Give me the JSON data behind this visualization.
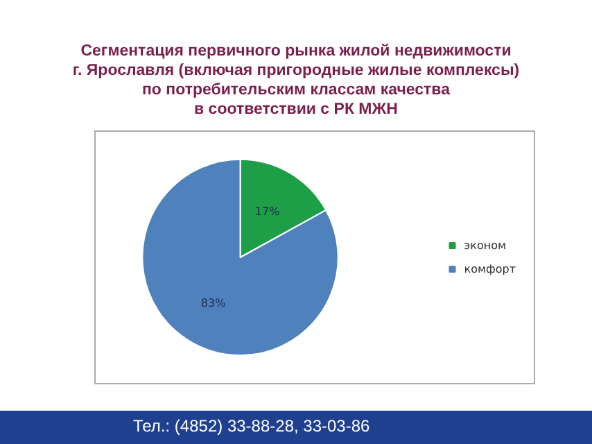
{
  "chart_data": {
    "type": "pie",
    "title": "Сегментация первичного рынка жилой недвижимости\nг. Ярославля (включая пригородные жилые комплексы)\nпо потребительским классам качества\nв соответствии с РК МЖН",
    "categories": [
      "эконом",
      "комфорт"
    ],
    "values": [
      17,
      83
    ],
    "colors": [
      "#1f9e48",
      "#4f81bd"
    ],
    "value_labels": [
      "17%",
      "83%"
    ],
    "legend": "right",
    "annotations": [
      "Тел.: (4852) 33-88-28, 33-03-86"
    ]
  }
}
